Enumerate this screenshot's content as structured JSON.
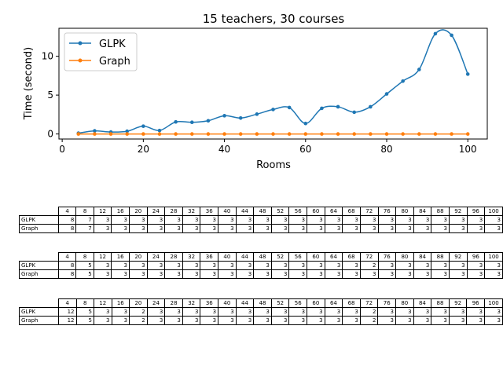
{
  "chart_data": {
    "type": "line",
    "title": "15 teachers, 30 courses",
    "xlabel": "Rooms",
    "ylabel": "Time (second)",
    "xlim": [
      -0.8,
      104.8
    ],
    "ylim": [
      -0.65,
      13.6
    ],
    "xticks": [
      0,
      20,
      40,
      60,
      80,
      100
    ],
    "yticks": [
      0,
      5,
      10
    ],
    "grid": false,
    "legend": "top-left",
    "x": [
      4,
      8,
      12,
      16,
      20,
      24,
      28,
      32,
      36,
      40,
      44,
      48,
      52,
      56,
      60,
      64,
      68,
      72,
      76,
      80,
      84,
      88,
      92,
      96,
      100
    ],
    "series": [
      {
        "name": "GLPK",
        "color": "#1f77b4",
        "values": [
          0.1,
          0.4,
          0.25,
          0.35,
          1.0,
          0.45,
          1.55,
          1.5,
          1.7,
          2.35,
          2.05,
          2.55,
          3.15,
          3.4,
          1.35,
          3.3,
          3.5,
          2.8,
          3.5,
          5.15,
          6.8,
          8.3,
          12.9,
          12.7,
          7.7
        ]
      },
      {
        "name": "Graph",
        "color": "#ff7f0e",
        "values": [
          0,
          0,
          0,
          0,
          0,
          0,
          0,
          0,
          0,
          0,
          0,
          0,
          0,
          0,
          0,
          0,
          0,
          0,
          0,
          0,
          0,
          0,
          0,
          0,
          0
        ]
      }
    ]
  },
  "tables": [
    {
      "columns": [
        "4",
        "8",
        "12",
        "16",
        "20",
        "24",
        "28",
        "32",
        "36",
        "40",
        "44",
        "48",
        "52",
        "56",
        "60",
        "64",
        "68",
        "72",
        "76",
        "80",
        "84",
        "88",
        "92",
        "96",
        "100"
      ],
      "rows": [
        {
          "label": "GLPK",
          "cells": [
            "8",
            "7",
            "3",
            "3",
            "3",
            "3",
            "3",
            "3",
            "3",
            "3",
            "3",
            "3",
            "3",
            "3",
            "3",
            "3",
            "3",
            "3",
            "3",
            "3",
            "3",
            "3",
            "3",
            "3",
            "3"
          ]
        },
        {
          "label": "Graph",
          "cells": [
            "8",
            "7",
            "3",
            "3",
            "3",
            "3",
            "3",
            "3",
            "3",
            "3",
            "3",
            "3",
            "3",
            "3",
            "3",
            "3",
            "3",
            "3",
            "3",
            "3",
            "3",
            "3",
            "3",
            "3",
            "3"
          ]
        }
      ]
    },
    {
      "columns": [
        "4",
        "8",
        "12",
        "16",
        "20",
        "24",
        "28",
        "32",
        "36",
        "40",
        "44",
        "48",
        "52",
        "56",
        "60",
        "64",
        "68",
        "72",
        "76",
        "80",
        "84",
        "88",
        "92",
        "96",
        "100"
      ],
      "rows": [
        {
          "label": "GLPK",
          "cells": [
            "8",
            "5",
            "3",
            "3",
            "3",
            "3",
            "3",
            "3",
            "3",
            "3",
            "3",
            "3",
            "3",
            "3",
            "3",
            "3",
            "3",
            "2",
            "3",
            "3",
            "3",
            "3",
            "3",
            "3",
            "3"
          ]
        },
        {
          "label": "Graph",
          "cells": [
            "8",
            "5",
            "3",
            "3",
            "3",
            "3",
            "3",
            "3",
            "3",
            "3",
            "3",
            "3",
            "3",
            "3",
            "3",
            "3",
            "3",
            "3",
            "3",
            "3",
            "3",
            "3",
            "3",
            "3",
            "3"
          ]
        }
      ]
    },
    {
      "columns": [
        "4",
        "8",
        "12",
        "16",
        "20",
        "24",
        "28",
        "32",
        "36",
        "40",
        "44",
        "48",
        "52",
        "56",
        "60",
        "64",
        "68",
        "72",
        "76",
        "80",
        "84",
        "88",
        "92",
        "96",
        "100"
      ],
      "rows": [
        {
          "label": "GLPK",
          "cells": [
            "12",
            "5",
            "3",
            "3",
            "2",
            "3",
            "3",
            "3",
            "3",
            "3",
            "3",
            "3",
            "3",
            "3",
            "3",
            "3",
            "3",
            "2",
            "3",
            "3",
            "3",
            "3",
            "3",
            "3",
            "3"
          ]
        },
        {
          "label": "Graph",
          "cells": [
            "12",
            "5",
            "3",
            "3",
            "2",
            "3",
            "3",
            "3",
            "3",
            "3",
            "3",
            "3",
            "3",
            "3",
            "3",
            "3",
            "3",
            "2",
            "3",
            "3",
            "3",
            "3",
            "3",
            "3",
            "3"
          ]
        }
      ]
    }
  ]
}
